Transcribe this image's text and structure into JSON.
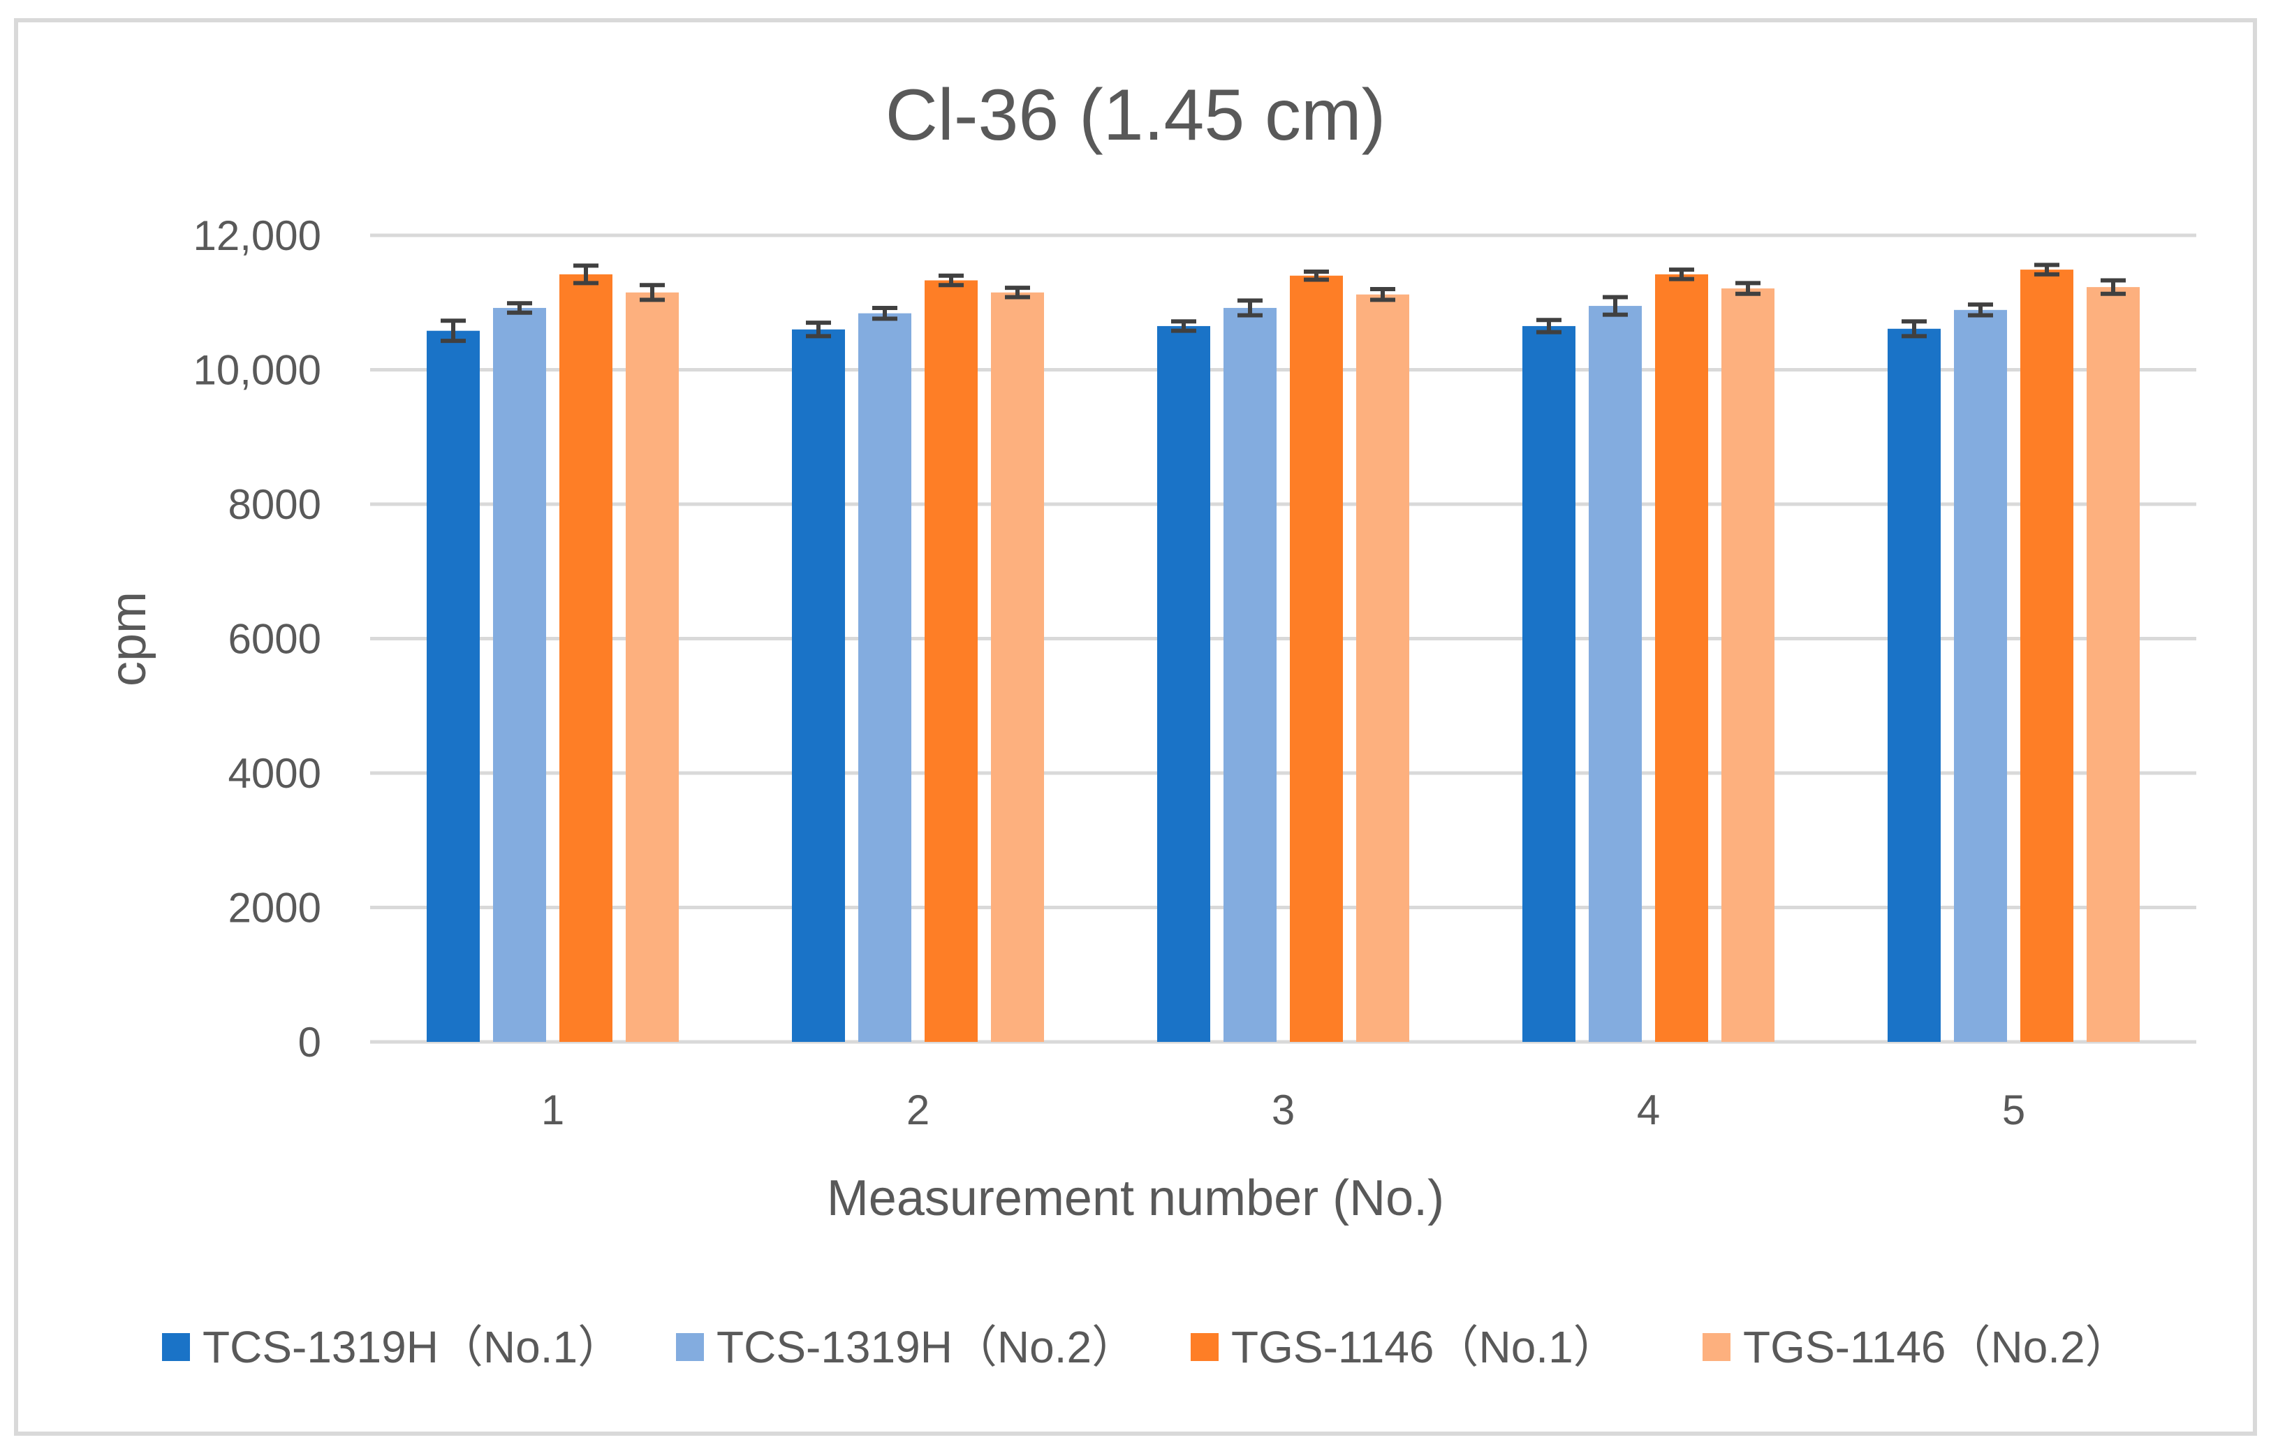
{
  "chart_data": {
    "type": "bar",
    "title": "Cl-36 (1.45 cm)",
    "xlabel": "Measurement number (No.)",
    "ylabel": "cpm",
    "categories": [
      "1",
      "2",
      "3",
      "4",
      "5"
    ],
    "yticks": [
      0,
      2000,
      4000,
      6000,
      8000,
      10000,
      12000
    ],
    "ytick_labels": [
      "0",
      "2000",
      "4000",
      "6000",
      "8000",
      "10,000",
      "12,000"
    ],
    "ylim": [
      0,
      12000
    ],
    "grid": true,
    "legend_position": "bottom",
    "series": [
      {
        "name": "TCS-1319H（No.1）",
        "color": "#1a73c7",
        "values": [
          10580,
          10600,
          10650,
          10650,
          10610
        ],
        "errors": [
          150,
          100,
          70,
          90,
          110
        ]
      },
      {
        "name": "TCS-1319H（No.2）",
        "color": "#83acdf",
        "values": [
          10920,
          10840,
          10920,
          10950,
          10890
        ],
        "errors": [
          70,
          80,
          110,
          130,
          80
        ]
      },
      {
        "name": "TGS-1146（No.1）",
        "color": "#fe7e26",
        "values": [
          11420,
          11330,
          11400,
          11420,
          11490
        ],
        "errors": [
          130,
          70,
          60,
          70,
          70
        ]
      },
      {
        "name": "TGS-1146（No.2）",
        "color": "#fdb07e",
        "values": [
          11150,
          11150,
          11120,
          11210,
          11230
        ],
        "errors": [
          110,
          70,
          80,
          80,
          100
        ]
      }
    ]
  }
}
